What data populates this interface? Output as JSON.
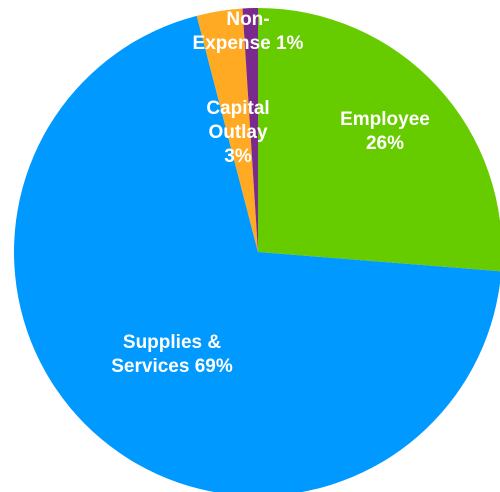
{
  "chart_data": {
    "type": "pie",
    "title": "",
    "start_angle_deg": 0,
    "direction": "clockwise",
    "slices": [
      {
        "label": "Employee",
        "value": 26,
        "color": "#66cc00",
        "label_lines": [
          "Employee",
          "26%"
        ]
      },
      {
        "label": "Supplies & Services",
        "value": 69,
        "color": "#0099ff",
        "label_lines": [
          "Supplies &",
          "Services 69%"
        ]
      },
      {
        "label": "Capital Outlay",
        "value": 3,
        "color": "#ffaa22",
        "label_lines": [
          "Capital",
          "Outlay",
          "3%"
        ]
      },
      {
        "label": "Non-Expense",
        "value": 1,
        "color": "#7a2a8c",
        "label_lines": [
          "Non-",
          "Expense 1%"
        ]
      }
    ]
  }
}
